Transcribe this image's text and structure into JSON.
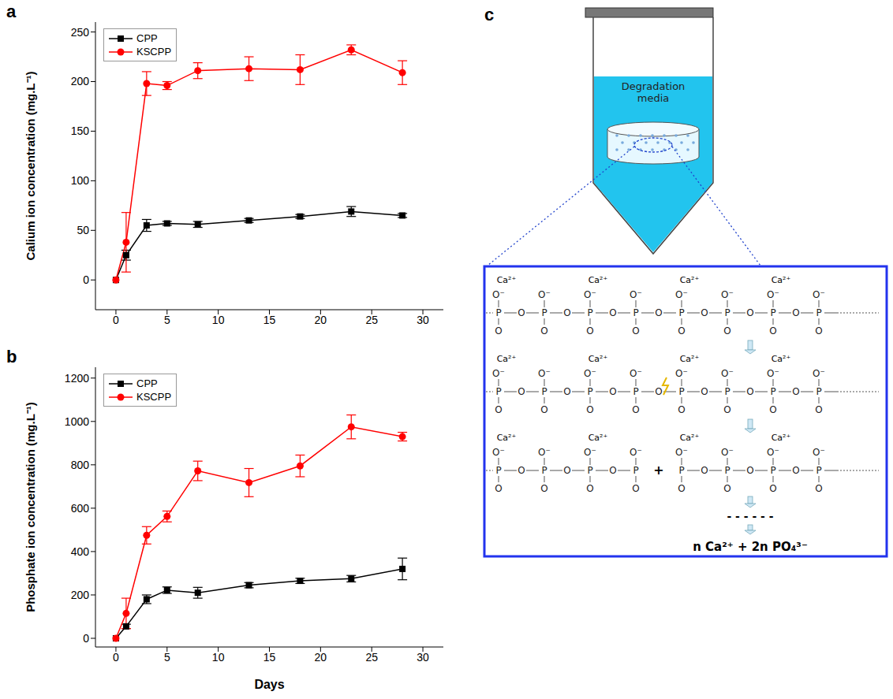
{
  "chart_data": [
    {
      "panel": "a",
      "type": "line",
      "y_label": "Calium ion concentration (mg.L⁻¹)",
      "x": [
        0,
        1,
        3,
        5,
        8,
        13,
        18,
        23,
        28
      ],
      "xlim": [
        -2,
        32
      ],
      "xticks": [
        0,
        5,
        10,
        15,
        20,
        25,
        30
      ],
      "ylim": [
        -30,
        260
      ],
      "yticks": [
        0,
        50,
        100,
        150,
        200,
        250
      ],
      "legend": "upper left",
      "series": [
        {
          "name": "CPP",
          "color": "#000000",
          "marker": "square",
          "values": [
            0,
            25,
            55,
            57,
            56,
            60,
            64,
            69,
            65
          ],
          "errors": [
            0,
            5,
            6,
            2,
            3,
            2,
            2,
            5,
            2
          ]
        },
        {
          "name": "KSCPP",
          "color": "#ff0000",
          "marker": "circle",
          "values": [
            0,
            38,
            198,
            196,
            211,
            213,
            212,
            232,
            209
          ],
          "errors": [
            0,
            30,
            12,
            4,
            8,
            12,
            15,
            5,
            12
          ]
        }
      ]
    },
    {
      "panel": "b",
      "type": "line",
      "x_label": "Days",
      "y_label": "Phosphate ion concentration (mg.L⁻¹)",
      "x": [
        0,
        1,
        3,
        5,
        8,
        13,
        18,
        23,
        28
      ],
      "xlim": [
        -2,
        32
      ],
      "xticks": [
        0,
        5,
        10,
        15,
        20,
        25,
        30
      ],
      "ylim": [
        -40,
        1250
      ],
      "yticks": [
        0,
        200,
        400,
        600,
        800,
        1000,
        1200
      ],
      "legend": "upper left",
      "series": [
        {
          "name": "CPP",
          "color": "#000000",
          "marker": "square",
          "values": [
            0,
            55,
            180,
            222,
            210,
            245,
            265,
            275,
            320
          ],
          "errors": [
            0,
            10,
            20,
            15,
            25,
            12,
            12,
            15,
            50
          ]
        },
        {
          "name": "KSCPP",
          "color": "#ff0000",
          "marker": "circle",
          "values": [
            0,
            115,
            475,
            562,
            772,
            718,
            795,
            975,
            930
          ],
          "errors": [
            0,
            70,
            40,
            25,
            45,
            65,
            50,
            55,
            20
          ]
        }
      ]
    }
  ],
  "diagram": {
    "panel": "c",
    "media_label": "Degradation media",
    "ion": "Ca²⁺",
    "phosphorus": "P",
    "oxygen": "O",
    "anion_oxygen": "O⁻",
    "split": "+",
    "ellipsis": "- - - - - -",
    "product": "n Ca²⁺ + 2n PO₄³⁻"
  }
}
